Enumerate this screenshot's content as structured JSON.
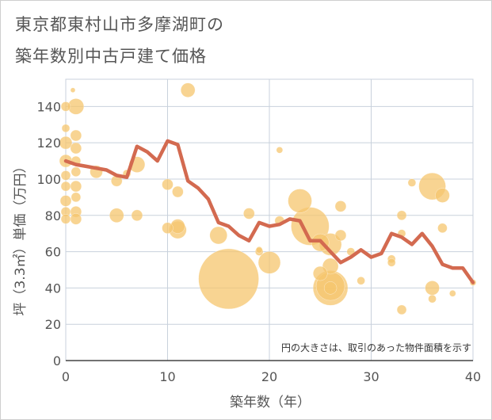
{
  "title_line1": "東京都東村山市多摩湖町の",
  "title_line2": "築年数別中古戸建て価格",
  "chart_data": {
    "type": "scatter",
    "title": "東京都東村山市多摩湖町の築年数別中古戸建て価格",
    "xlabel": "築年数（年）",
    "ylabel": "坪（3.3㎡）単価（万円）",
    "xlim": [
      0,
      40
    ],
    "ylim": [
      0,
      155
    ],
    "x_ticks": [
      "0",
      "10",
      "20",
      "30",
      "40"
    ],
    "y_ticks": [
      "0",
      "20",
      "40",
      "60",
      "80",
      "100",
      "120",
      "140"
    ],
    "grid": true,
    "note": "円の大きさは、取引のあった物件面積を示す",
    "colors": {
      "bubble": "#f5c56e",
      "line": "#d36a50",
      "grid": "#c8d1dc"
    },
    "bubbles": [
      {
        "x": 0,
        "y": 140,
        "r": 6
      },
      {
        "x": 0,
        "y": 128,
        "r": 5
      },
      {
        "x": 0,
        "y": 120,
        "r": 8
      },
      {
        "x": 0,
        "y": 110,
        "r": 8
      },
      {
        "x": 0,
        "y": 102,
        "r": 6
      },
      {
        "x": 0,
        "y": 96,
        "r": 6
      },
      {
        "x": 0,
        "y": 88,
        "r": 7
      },
      {
        "x": 0,
        "y": 82,
        "r": 6
      },
      {
        "x": 0,
        "y": 78,
        "r": 6
      },
      {
        "x": 0.7,
        "y": 149,
        "r": 3
      },
      {
        "x": 1,
        "y": 140,
        "r": 10
      },
      {
        "x": 1,
        "y": 124,
        "r": 7
      },
      {
        "x": 1,
        "y": 117,
        "r": 7
      },
      {
        "x": 1,
        "y": 110,
        "r": 6
      },
      {
        "x": 1,
        "y": 104,
        "r": 6
      },
      {
        "x": 1,
        "y": 96,
        "r": 7
      },
      {
        "x": 1,
        "y": 90,
        "r": 6
      },
      {
        "x": 1,
        "y": 82,
        "r": 7
      },
      {
        "x": 1,
        "y": 78,
        "r": 7
      },
      {
        "x": 3,
        "y": 104,
        "r": 8
      },
      {
        "x": 5,
        "y": 99,
        "r": 7
      },
      {
        "x": 5,
        "y": 80,
        "r": 9
      },
      {
        "x": 6,
        "y": 103,
        "r": 5
      },
      {
        "x": 7,
        "y": 108,
        "r": 10
      },
      {
        "x": 7,
        "y": 80,
        "r": 7
      },
      {
        "x": 10,
        "y": 97,
        "r": 7
      },
      {
        "x": 10,
        "y": 73,
        "r": 7
      },
      {
        "x": 11,
        "y": 93,
        "r": 7
      },
      {
        "x": 11,
        "y": 74,
        "r": 9
      },
      {
        "x": 11,
        "y": 72,
        "r": 11
      },
      {
        "x": 12,
        "y": 149,
        "r": 9
      },
      {
        "x": 15,
        "y": 69,
        "r": 11
      },
      {
        "x": 16,
        "y": 45,
        "r": 38
      },
      {
        "x": 18,
        "y": 81,
        "r": 7
      },
      {
        "x": 19,
        "y": 61,
        "r": 4
      },
      {
        "x": 19,
        "y": 60,
        "r": 5
      },
      {
        "x": 20,
        "y": 54,
        "r": 14
      },
      {
        "x": 21,
        "y": 116,
        "r": 4
      },
      {
        "x": 21,
        "y": 77,
        "r": 6
      },
      {
        "x": 23,
        "y": 88,
        "r": 15
      },
      {
        "x": 24,
        "y": 74,
        "r": 24
      },
      {
        "x": 25,
        "y": 65,
        "r": 11
      },
      {
        "x": 25,
        "y": 48,
        "r": 9
      },
      {
        "x": 26,
        "y": 64,
        "r": 14
      },
      {
        "x": 26,
        "y": 52,
        "r": 10
      },
      {
        "x": 26,
        "y": 41,
        "r": 18
      },
      {
        "x": 26,
        "y": 40,
        "r": 22
      },
      {
        "x": 26,
        "y": 40,
        "r": 8
      },
      {
        "x": 27,
        "y": 85,
        "r": 7
      },
      {
        "x": 27,
        "y": 69,
        "r": 7
      },
      {
        "x": 28,
        "y": 60,
        "r": 5
      },
      {
        "x": 29,
        "y": 44,
        "r": 5
      },
      {
        "x": 32,
        "y": 56,
        "r": 5
      },
      {
        "x": 32,
        "y": 54,
        "r": 5
      },
      {
        "x": 33,
        "y": 80,
        "r": 6
      },
      {
        "x": 33,
        "y": 70,
        "r": 5
      },
      {
        "x": 33,
        "y": 28,
        "r": 6
      },
      {
        "x": 34,
        "y": 98,
        "r": 5
      },
      {
        "x": 36,
        "y": 96,
        "r": 17
      },
      {
        "x": 36,
        "y": 40,
        "r": 9
      },
      {
        "x": 36,
        "y": 34,
        "r": 5
      },
      {
        "x": 37,
        "y": 91,
        "r": 9
      },
      {
        "x": 37,
        "y": 73,
        "r": 6
      },
      {
        "x": 38,
        "y": 37,
        "r": 4
      },
      {
        "x": 40,
        "y": 43,
        "r": 4
      }
    ],
    "trend_line": [
      [
        0,
        110
      ],
      [
        1,
        108
      ],
      [
        2,
        107
      ],
      [
        3,
        106
      ],
      [
        4,
        105
      ],
      [
        5,
        102
      ],
      [
        6,
        101
      ],
      [
        7,
        118
      ],
      [
        8,
        115
      ],
      [
        9,
        110
      ],
      [
        10,
        121
      ],
      [
        11,
        119
      ],
      [
        12,
        99
      ],
      [
        13,
        95
      ],
      [
        14,
        89
      ],
      [
        15,
        76
      ],
      [
        16,
        74
      ],
      [
        17,
        69
      ],
      [
        18,
        66
      ],
      [
        19,
        76
      ],
      [
        20,
        74
      ],
      [
        21,
        75
      ],
      [
        22,
        78
      ],
      [
        23,
        77
      ],
      [
        24,
        66
      ],
      [
        25,
        66
      ],
      [
        26,
        60
      ],
      [
        27,
        54
      ],
      [
        28,
        57
      ],
      [
        29,
        61
      ],
      [
        30,
        57
      ],
      [
        31,
        59
      ],
      [
        32,
        70
      ],
      [
        33,
        68
      ],
      [
        34,
        64
      ],
      [
        35,
        70
      ],
      [
        36,
        63
      ],
      [
        37,
        53
      ],
      [
        38,
        51
      ],
      [
        39,
        51
      ],
      [
        40,
        43
      ]
    ]
  }
}
